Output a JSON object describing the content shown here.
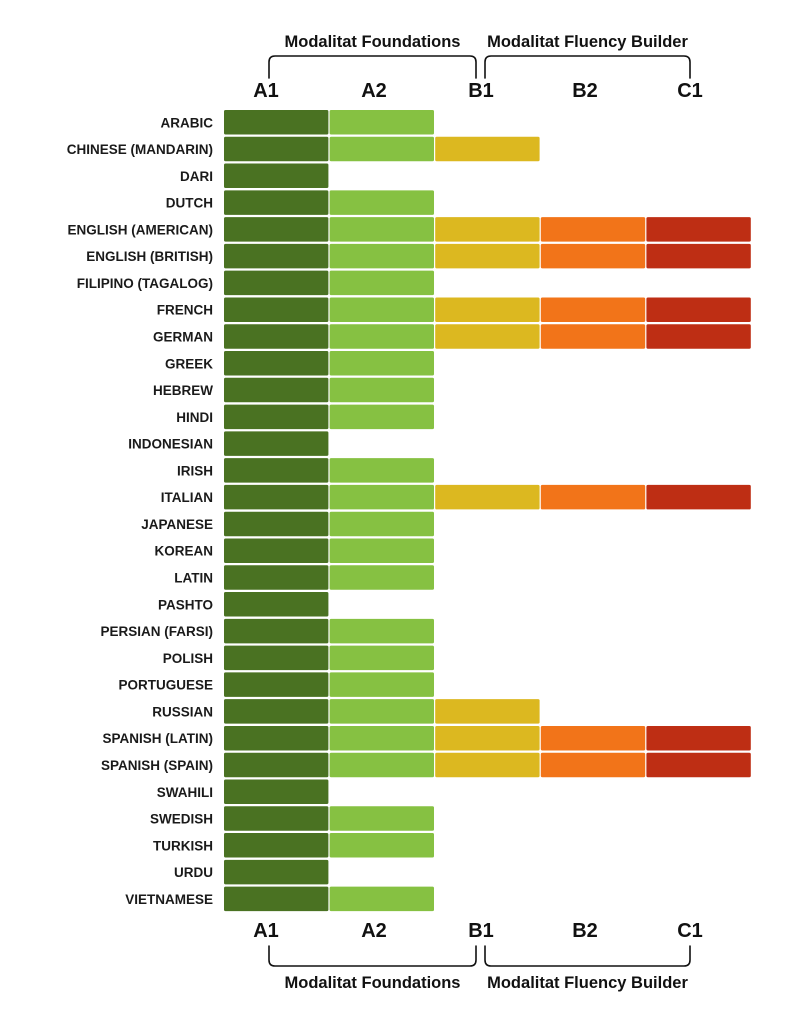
{
  "chart_data": {
    "type": "bar",
    "orientation": "horizontal-stacked",
    "levels": [
      "A1",
      "A2",
      "B1",
      "B2",
      "C1"
    ],
    "level_colors": [
      "#4a7222",
      "#86c142",
      "#dcb820",
      "#f27419",
      "#be2e14"
    ],
    "programs": [
      {
        "label": "Modalitat Foundations",
        "from": "A1",
        "to": "B1"
      },
      {
        "label": "Modalitat Fluency Builder",
        "from": "B1",
        "to": "C1"
      }
    ],
    "categories": [
      "ARABIC",
      "CHINESE (MANDARIN)",
      "DARI",
      "DUTCH",
      "ENGLISH (AMERICAN)",
      "ENGLISH (BRITISH)",
      "FILIPINO (TAGALOG)",
      "FRENCH",
      "GERMAN",
      "GREEK",
      "HEBREW",
      "HINDI",
      "INDONESIAN",
      "IRISH",
      "ITALIAN",
      "JAPANESE",
      "KOREAN",
      "LATIN",
      "PASHTO",
      "PERSIAN (FARSI)",
      "POLISH",
      "PORTUGUESE",
      "RUSSIAN",
      "SPANISH (LATIN)",
      "SPANISH (SPAIN)",
      "SWAHILI",
      "SWEDISH",
      "TURKISH",
      "URDU",
      "VIETNAMESE"
    ],
    "values": [
      2,
      3,
      1,
      2,
      5,
      5,
      2,
      5,
      5,
      2,
      2,
      2,
      1,
      2,
      5,
      2,
      2,
      2,
      1,
      2,
      2,
      2,
      3,
      5,
      5,
      1,
      2,
      2,
      1,
      2
    ],
    "xlim": [
      0,
      5
    ],
    "legend": "none",
    "grid": false
  }
}
